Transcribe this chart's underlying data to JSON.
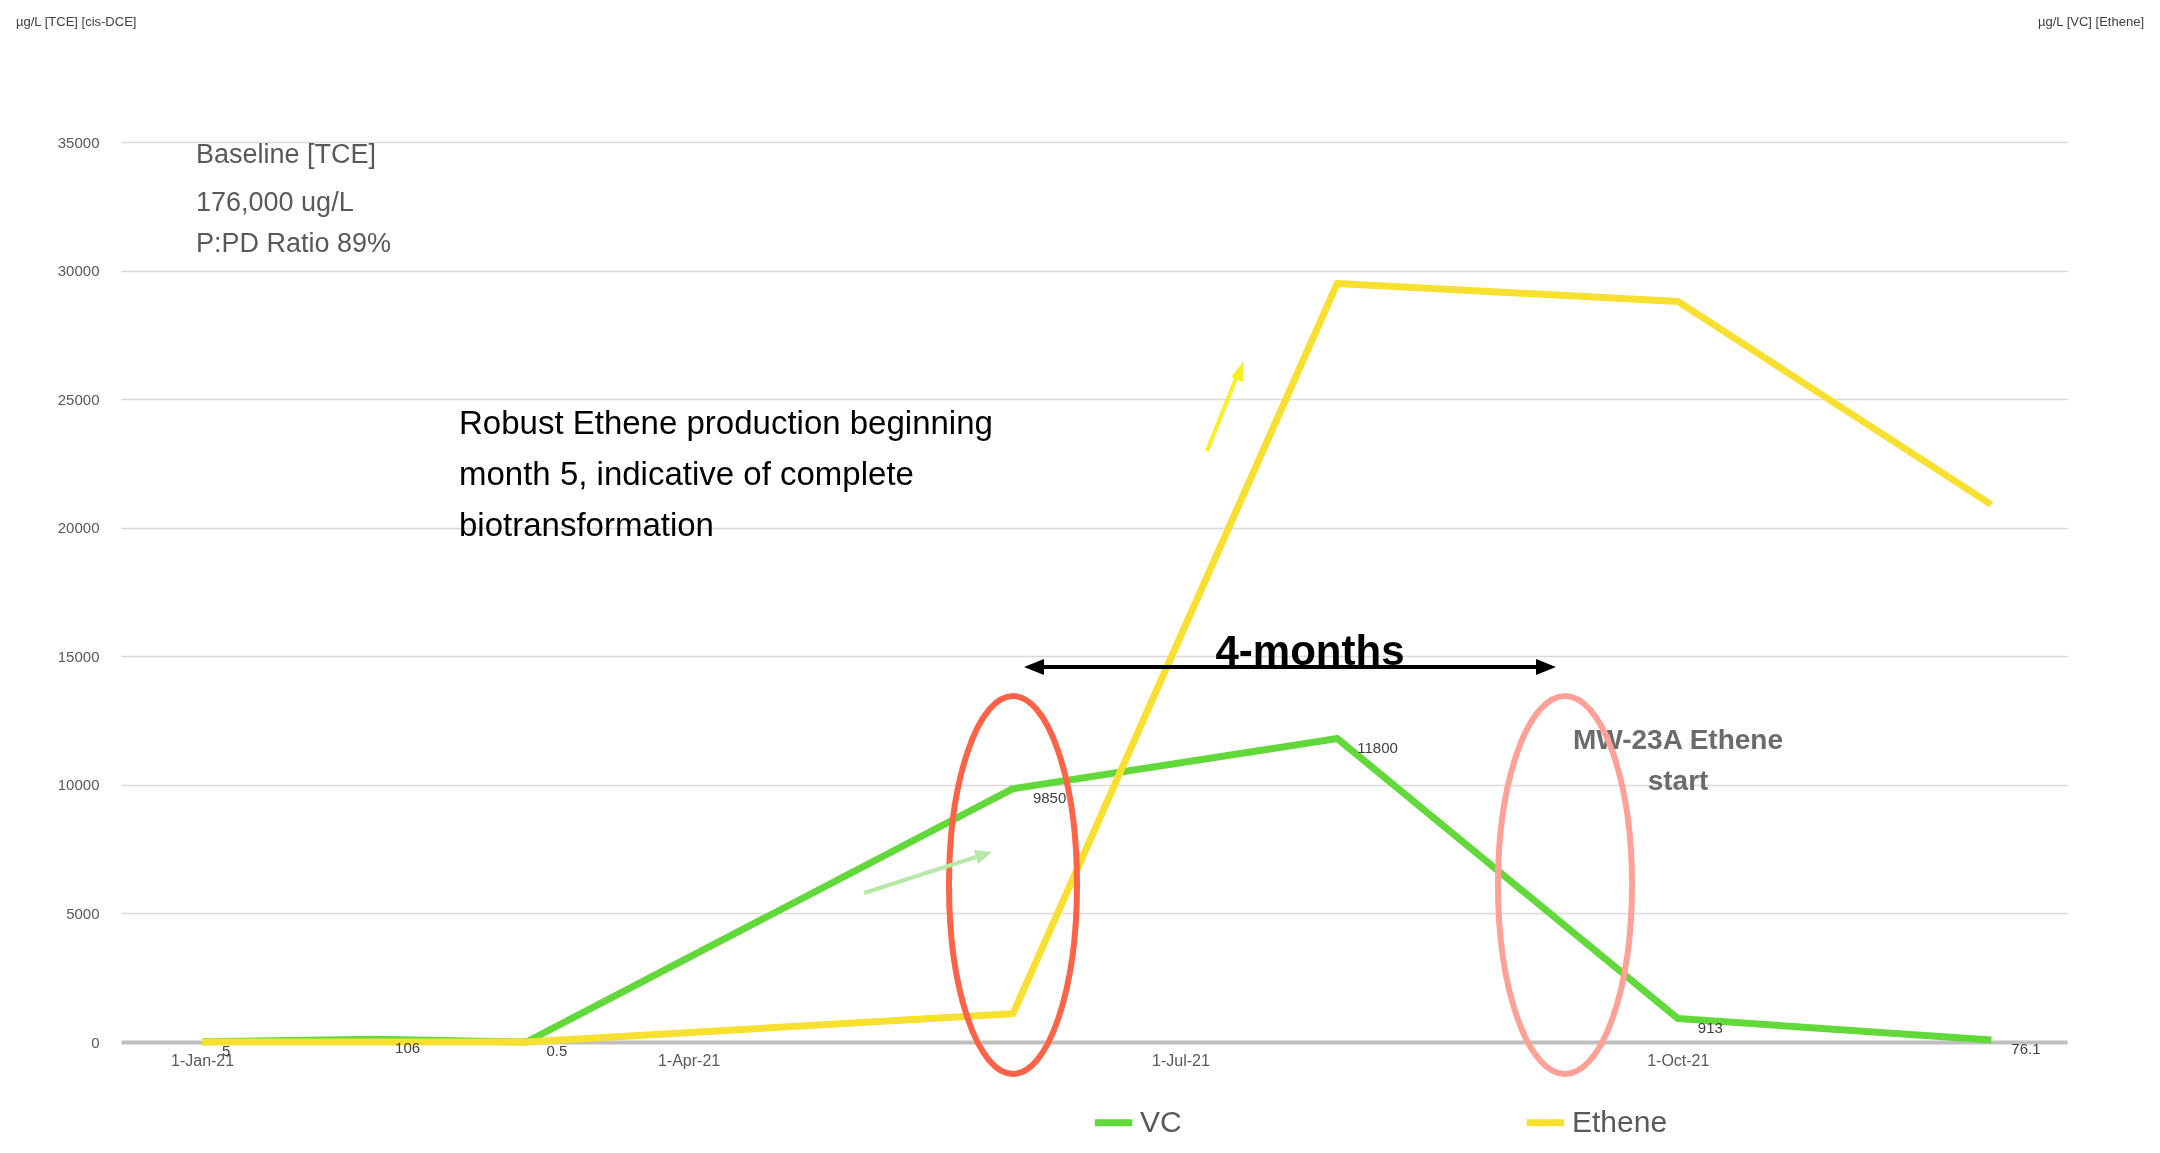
{
  "chart_data": {
    "type": "line",
    "x": [
      "2021-01-01",
      "2021-02-02",
      "2021-03-02",
      "2021-05-31",
      "2021-07-30",
      "2021-10-01",
      "2021-11-28"
    ],
    "series": [
      {
        "name": "VC",
        "color": "#62d83a",
        "values": [
          5,
          106,
          0.5,
          9850,
          11800,
          913,
          76.1
        ],
        "value_labels": [
          "5",
          "106",
          "0.5",
          "9850",
          "11800",
          "913",
          "76.1"
        ]
      },
      {
        "name": "Ethene",
        "color": "#f8e030",
        "values": [
          0,
          0,
          0,
          1100,
          29500,
          28800,
          20900
        ]
      }
    ],
    "xlim": [
      "2020-12-17",
      "2021-12-12"
    ],
    "xticks": [
      {
        "value": "2021-01-01",
        "label": "1-Jan-21"
      },
      {
        "value": "2021-04-01",
        "label": "1-Apr-21"
      },
      {
        "value": "2021-07-01",
        "label": "1-Jul-21"
      },
      {
        "value": "2021-10-01",
        "label": "1-Oct-21"
      }
    ],
    "ylim": [
      0,
      35000
    ],
    "yticks": [
      0,
      5000,
      10000,
      15000,
      20000,
      25000,
      30000,
      35000
    ],
    "grid": "y",
    "legend": "bottom",
    "annotations": [
      "Baseline [TCE]",
      "176,000 ug/L",
      "P:PD Ratio 89%",
      "Robust Ethene production beginning month 5, indicative of complete biotransformation",
      "4-months",
      "MW-23A Ethene start",
      "µg/L [TCE] [cis-DCE]",
      "µg/L [VC] [Ethene]"
    ]
  }
}
